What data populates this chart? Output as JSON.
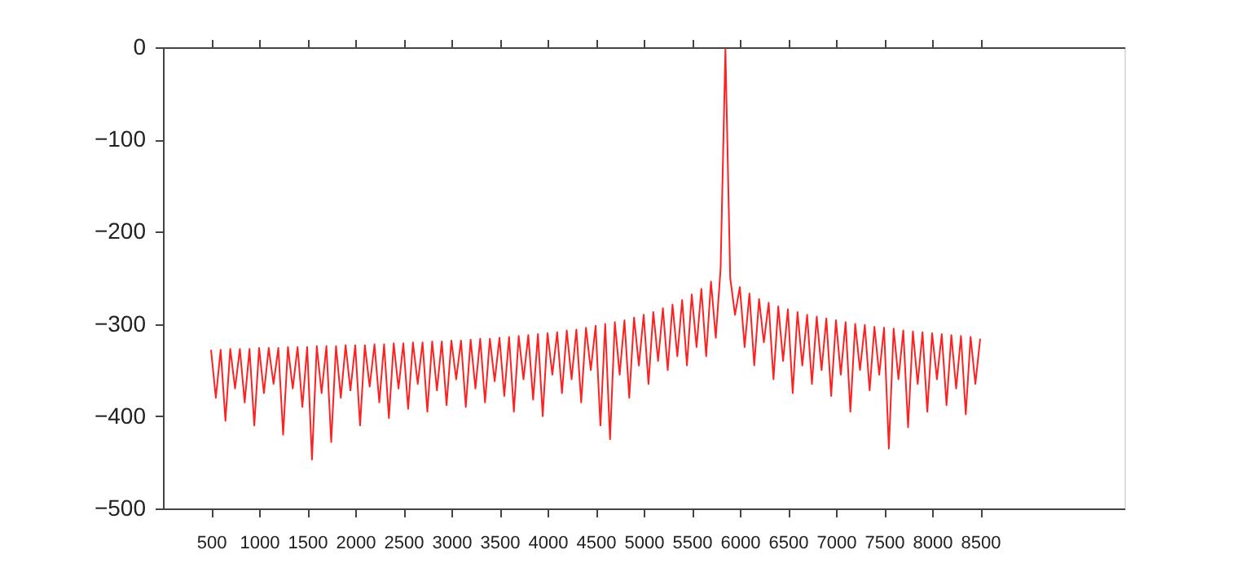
{
  "chart_data": {
    "type": "line",
    "x": [
      500,
      550,
      600,
      650,
      700,
      750,
      800,
      850,
      900,
      950,
      1000,
      1050,
      1100,
      1150,
      1200,
      1250,
      1300,
      1350,
      1400,
      1450,
      1500,
      1550,
      1600,
      1650,
      1700,
      1750,
      1800,
      1850,
      1900,
      1950,
      2000,
      2050,
      2100,
      2150,
      2200,
      2250,
      2300,
      2350,
      2400,
      2450,
      2500,
      2550,
      2600,
      2650,
      2700,
      2750,
      2800,
      2850,
      2900,
      2950,
      3000,
      3050,
      3100,
      3150,
      3200,
      3250,
      3300,
      3350,
      3400,
      3450,
      3500,
      3550,
      3600,
      3650,
      3700,
      3750,
      3800,
      3850,
      3900,
      3950,
      4000,
      4050,
      4100,
      4150,
      4200,
      4250,
      4300,
      4350,
      4400,
      4450,
      4500,
      4550,
      4600,
      4650,
      4700,
      4750,
      4800,
      4850,
      4900,
      4950,
      5000,
      5050,
      5100,
      5150,
      5200,
      5250,
      5300,
      5350,
      5400,
      5450,
      5500,
      5550,
      5600,
      5650,
      5700,
      5750,
      5800,
      5850,
      5900,
      5950,
      6000,
      6050,
      6100,
      6150,
      6200,
      6250,
      6300,
      6350,
      6400,
      6450,
      6500,
      6550,
      6600,
      6650,
      6700,
      6750,
      6800,
      6850,
      6900,
      6950,
      7000,
      7050,
      7100,
      7150,
      7200,
      7250,
      7300,
      7350,
      7400,
      7450,
      7500,
      7550,
      7600,
      7650,
      7700,
      7750,
      7800,
      7850,
      7900,
      7950,
      8000,
      8050,
      8100,
      8150,
      8200,
      8250,
      8300,
      8350,
      8400,
      8450,
      8500
    ],
    "series": [
      {
        "color": "#ff2020",
        "values": [
          -328,
          -380,
          -328,
          -405,
          -327,
          -370,
          -327,
          -385,
          -327,
          -410,
          -326,
          -375,
          -326,
          -365,
          -326,
          -420,
          -325,
          -370,
          -325,
          -390,
          -325,
          -447,
          -324,
          -375,
          -324,
          -428,
          -324,
          -380,
          -323,
          -372,
          -323,
          -410,
          -323,
          -368,
          -322,
          -385,
          -322,
          -402,
          -321,
          -370,
          -321,
          -392,
          -320,
          -365,
          -320,
          -395,
          -319,
          -372,
          -319,
          -388,
          -318,
          -360,
          -318,
          -390,
          -317,
          -370,
          -316,
          -385,
          -316,
          -362,
          -315,
          -378,
          -314,
          -395,
          -313,
          -360,
          -312,
          -382,
          -311,
          -400,
          -310,
          -355,
          -309,
          -375,
          -307,
          -360,
          -306,
          -385,
          -304,
          -350,
          -302,
          -410,
          -300,
          -425,
          -298,
          -355,
          -296,
          -380,
          -293,
          -345,
          -290,
          -365,
          -287,
          -340,
          -283,
          -350,
          -279,
          -335,
          -274,
          -345,
          -268,
          -325,
          -262,
          -335,
          -254,
          -315,
          -240,
          -2,
          -250,
          -290,
          -260,
          -325,
          -267,
          -345,
          -273,
          -320,
          -277,
          -360,
          -281,
          -340,
          -284,
          -375,
          -287,
          -345,
          -290,
          -365,
          -292,
          -350,
          -294,
          -378,
          -296,
          -355,
          -298,
          -395,
          -300,
          -350,
          -301,
          -372,
          -303,
          -355,
          -304,
          -435,
          -305,
          -360,
          -307,
          -412,
          -308,
          -365,
          -309,
          -395,
          -310,
          -360,
          -311,
          -388,
          -312,
          -370,
          -313,
          -398,
          -314,
          -365,
          -316
        ]
      }
    ],
    "xlim": [
      0,
      10000
    ],
    "xticks": [
      500,
      1000,
      1500,
      2000,
      2500,
      3000,
      3500,
      4000,
      4500,
      5000,
      5500,
      6000,
      6500,
      7000,
      7500,
      8000,
      8500
    ],
    "ylim": [
      -500,
      0
    ],
    "yticks": [
      -500,
      -400,
      -300,
      -200,
      -100,
      0
    ],
    "grid": false,
    "marker": "none",
    "line_style": "solid"
  }
}
